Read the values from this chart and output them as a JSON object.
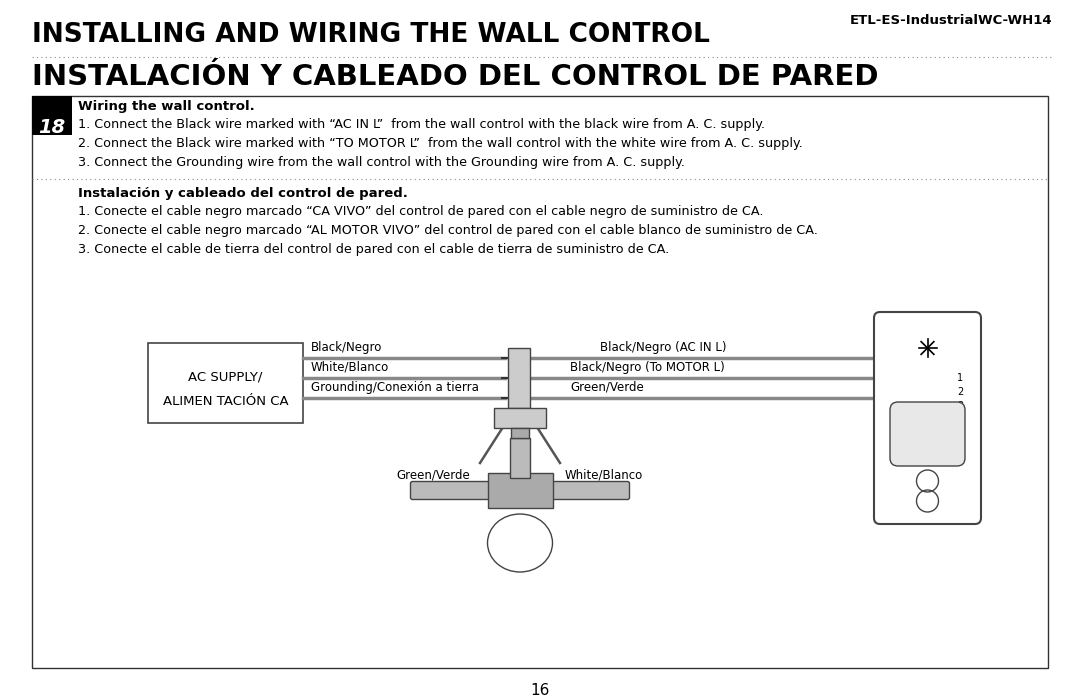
{
  "bg_color": "#ffffff",
  "title_en": "INSTALLING AND WIRING THE WALL CONTROL",
  "title_es": "INSTALACIÓN Y CABLEADO DEL CONTROL DE PARED",
  "model_number": "ETL-ES-IndustrialWC-WH14",
  "step_number": "18",
  "step_heading_en": "Wiring the wall control.",
  "step_heading_es": "Instalación y cableado del control de pared.",
  "instructions_en": [
    "1. Connect the Black wire marked with “AC IN L”  from the wall control with the black wire from A. C. supply.",
    "2. Connect the Black wire marked with “TO MOTOR L”  from the wall control with the white wire from A. C. supply.",
    "3. Connect the Grounding wire from the wall control with the Grounding wire from A. C. supply."
  ],
  "instructions_es": [
    "1. Conecte el cable negro marcado “CA VIVO” del control de pared con el cable negro de suministro de CA.",
    "2. Conecte el cable negro marcado “AL MOTOR VIVO” del control de pared con el cable blanco de suministro de CA.",
    "3. Conecte el cable de tierra del control de pared con el cable de tierra de suministro de CA."
  ],
  "page_number": "16",
  "supply_label1": "AC SUPPLY/",
  "supply_label2": "ALIMEN TACIÓN CA",
  "lbl_black": "Black/Negro",
  "lbl_white": "White/Blanco",
  "lbl_ground": "Grounding/Conexión a tierra",
  "lbl_ac_in": "Black/Negro (AC IN L)",
  "lbl_to_motor": "Black/Negro (To MOTOR L)",
  "lbl_green": "Green/Verde",
  "lbl_green2": "Green/Verde",
  "lbl_white2": "White/Blanco",
  "wire_color": "#888888",
  "wire_lw": 2.0
}
